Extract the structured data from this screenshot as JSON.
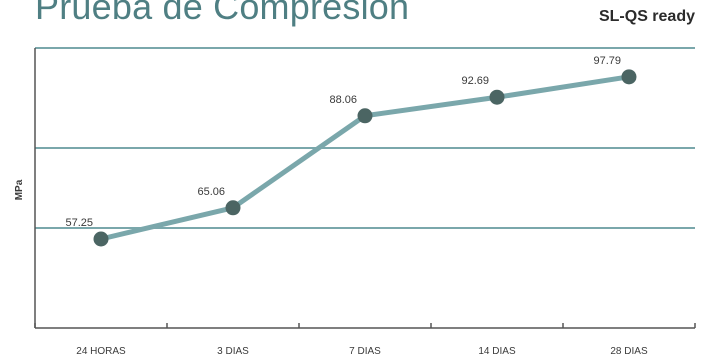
{
  "header": {
    "title": "Prueba de Compresión",
    "product": "SL-QS ready"
  },
  "colors": {
    "line": "#7aa7ab",
    "point": "#4b6563",
    "grid": "#7aa7ab",
    "title": "#4f7f83"
  },
  "chart_data": {
    "type": "line",
    "title": "Prueba de Compresión",
    "ylabel": "MPa",
    "xlabel": "",
    "categories": [
      "24 HORAS",
      "3 DIAS",
      "7 DIAS",
      "14 DIAS",
      "28 DIAS"
    ],
    "series": [
      {
        "values": [
          57.25,
          65.06,
          88.06,
          92.69,
          97.79
        ]
      }
    ],
    "data_labels": [
      "57.25",
      "65.06",
      "88.06",
      "92.69",
      "97.79"
    ],
    "ylim": [
      35,
      105
    ],
    "gridlines_y": [
      60,
      80,
      100
    ],
    "grid": true
  }
}
